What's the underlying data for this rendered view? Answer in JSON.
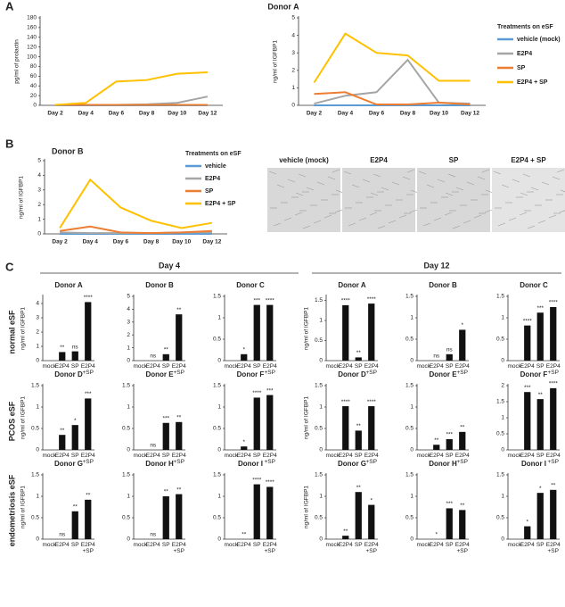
{
  "panel_labels": [
    "A",
    "B",
    "C"
  ],
  "micrographs": [
    "vehicle (mock)",
    "E2P4",
    "SP",
    "E2P4 + SP"
  ],
  "day_headers": [
    "Day 4",
    "Day 12"
  ],
  "row_labels": [
    "normal eSF",
    "PCOS eSF",
    "endometriosis eSF"
  ],
  "chart_data": [
    {
      "type": "line",
      "title": "Donor A",
      "ylabel": "pg/ml of prolactin",
      "categories": [
        "Day 2",
        "Day 4",
        "Day 6",
        "Day 8",
        "Day 10",
        "Day 12"
      ],
      "ylim": [
        0,
        180
      ],
      "yticks": [
        0,
        20,
        40,
        60,
        80,
        100,
        120,
        140,
        160,
        180
      ],
      "series": [
        {
          "name": "vehicle (mock)",
          "color": "#5b9bd5",
          "values": [
            0,
            0,
            0,
            0,
            0,
            0
          ]
        },
        {
          "name": "E2P4",
          "color": "#a5a5a5",
          "values": [
            1,
            1,
            1,
            2,
            5,
            18
          ]
        },
        {
          "name": "SP",
          "color": "#ed7d31",
          "values": [
            1,
            1,
            1,
            1,
            1,
            1
          ]
        },
        {
          "name": "E2P4 + SP",
          "color": "#ffc000",
          "values": [
            1,
            5,
            49,
            52,
            65,
            68
          ]
        }
      ]
    },
    {
      "type": "line",
      "ylabel": "ng/ml of IGFBP1",
      "legend_title": "Treatments on eSF",
      "categories": [
        "Day 2",
        "Day 4",
        "Day 6",
        "Day 8",
        "Day 10",
        "Day 12"
      ],
      "ylim": [
        0,
        5
      ],
      "yticks": [
        0,
        1,
        2,
        3,
        4,
        5
      ],
      "series": [
        {
          "name": "vehicle (mock)",
          "color": "#5b9bd5",
          "values": [
            0,
            0,
            0,
            0,
            0,
            0
          ]
        },
        {
          "name": "E2P4",
          "color": "#a5a5a5",
          "values": [
            0.1,
            0.55,
            0.75,
            2.6,
            0.15,
            0.1
          ]
        },
        {
          "name": "SP",
          "color": "#ed7d31",
          "values": [
            0.65,
            0.75,
            0.05,
            0.05,
            0.15,
            0.05
          ]
        },
        {
          "name": "E2P4 + SP",
          "color": "#ffc000",
          "values": [
            1.3,
            4.1,
            3.0,
            2.85,
            1.4,
            1.4
          ]
        }
      ]
    },
    {
      "type": "line",
      "title": "Donor B",
      "ylabel": "ng/ml of IGFBP1",
      "legend_title": "Treatments on eSF",
      "categories": [
        "Day 2",
        "Day 4",
        "Day 6",
        "Day 8",
        "Day 10",
        "Day 12"
      ],
      "ylim": [
        0,
        5
      ],
      "yticks": [
        0,
        1,
        2,
        3,
        4,
        5
      ],
      "series": [
        {
          "name": "vehicle",
          "color": "#5b9bd5",
          "values": [
            0,
            0,
            0,
            0,
            0,
            0
          ]
        },
        {
          "name": "E2P4",
          "color": "#a5a5a5",
          "values": [
            0.1,
            0.05,
            0.05,
            0.05,
            0.1,
            0.1
          ]
        },
        {
          "name": "SP",
          "color": "#ed7d31",
          "values": [
            0.2,
            0.5,
            0.1,
            0.05,
            0.1,
            0.2
          ]
        },
        {
          "name": "E2P4 + SP",
          "color": "#ffc000",
          "values": [
            0.4,
            3.7,
            1.8,
            0.9,
            0.4,
            0.75
          ]
        }
      ]
    },
    {
      "type": "bar",
      "title": "Donor A",
      "ylabel": "ng/ml of IGFBP1",
      "categories": [
        "mock",
        "E2P4",
        "SP",
        "E2P4 +SP"
      ],
      "values": [
        0,
        0.6,
        0.65,
        4.1
      ],
      "significance": [
        null,
        "**",
        "ns",
        "****"
      ],
      "ylim": [
        0,
        4.5
      ],
      "yticks": [
        0,
        1,
        2,
        3,
        4
      ]
    },
    {
      "type": "bar",
      "title": "Donor B",
      "categories": [
        "mock",
        "E2P4",
        "SP",
        "E2P4 +SP"
      ],
      "values": [
        0,
        0,
        0.5,
        3.6
      ],
      "significance": [
        null,
        "ns",
        "**",
        "**"
      ],
      "ylim": [
        0,
        5
      ],
      "yticks": [
        0,
        1,
        2,
        3,
        4,
        5
      ]
    },
    {
      "type": "bar",
      "title": "Donor C",
      "categories": [
        "mock",
        "E2P4",
        "SP",
        "E2P4 +SP"
      ],
      "values": [
        0,
        0.15,
        1.3,
        1.3
      ],
      "significance": [
        null,
        "*",
        "***",
        "****"
      ],
      "ylim": [
        0,
        1.5
      ],
      "yticks": [
        0,
        0.5,
        1,
        1.5
      ]
    },
    {
      "type": "bar",
      "title": "Donor A",
      "ylabel": "ng/ml of IGFBP1",
      "categories": [
        "mock",
        "E2P4",
        "SP",
        "E2P4 +SP"
      ],
      "values": [
        0,
        1.38,
        0.08,
        1.42
      ],
      "significance": [
        null,
        "****",
        "**",
        "****"
      ],
      "ylim": [
        0,
        1.6
      ],
      "yticks": [
        0,
        0.5,
        1,
        1.5
      ]
    },
    {
      "type": "bar",
      "title": "Donor B",
      "categories": [
        "mock",
        "E2P4",
        "SP",
        "E2P4 +SP"
      ],
      "values": [
        0,
        0,
        0.15,
        0.72
      ],
      "significance": [
        null,
        "ns",
        "ns",
        "*"
      ],
      "ylim": [
        0,
        1.5
      ],
      "yticks": [
        0,
        0.5,
        1,
        1.5
      ]
    },
    {
      "type": "bar",
      "title": "Donor C",
      "categories": [
        "mock",
        "E2P4",
        "SP",
        "E2P4 +SP"
      ],
      "values": [
        0,
        0.82,
        1.12,
        1.25
      ],
      "significance": [
        null,
        "****",
        "***",
        "****"
      ],
      "ylim": [
        0,
        1.5
      ],
      "yticks": [
        0,
        0.5,
        1,
        1.5
      ]
    },
    {
      "type": "bar",
      "title": "Donor D",
      "ylabel": "ng/ml of IGFBP1",
      "categories": [
        "mock",
        "E2P4",
        "SP",
        "E2P4 +SP"
      ],
      "values": [
        0,
        0.35,
        0.58,
        1.2
      ],
      "significance": [
        null,
        "**",
        "*",
        "***"
      ],
      "ylim": [
        0,
        1.5
      ],
      "yticks": [
        0,
        0.5,
        1,
        1.5
      ]
    },
    {
      "type": "bar",
      "title": "Donor E",
      "categories": [
        "mock",
        "E2P4",
        "SP",
        "E2P4 +SP"
      ],
      "values": [
        0,
        0,
        0.63,
        0.65
      ],
      "significance": [
        null,
        "ns",
        "***",
        "**"
      ],
      "ylim": [
        0,
        1.5
      ],
      "yticks": [
        0,
        0.5,
        1,
        1.5
      ]
    },
    {
      "type": "bar",
      "title": "Donor F",
      "categories": [
        "mock",
        "E2P4",
        "SP",
        "E2P4 +SP"
      ],
      "values": [
        0,
        0.08,
        1.22,
        1.28
      ],
      "significance": [
        null,
        "*",
        "****",
        "***"
      ],
      "ylim": [
        0,
        1.5
      ],
      "yticks": [
        0,
        0.5,
        1,
        1.5
      ]
    },
    {
      "type": "bar",
      "title": "Donor D",
      "ylabel": "ng/ml of IGFBP1",
      "categories": [
        "mock",
        "E2P4",
        "SP",
        "E2P4 +SP"
      ],
      "values": [
        0,
        1.02,
        0.45,
        1.02
      ],
      "significance": [
        null,
        "****",
        "**",
        "****"
      ],
      "ylim": [
        0,
        1.5
      ],
      "yticks": [
        0,
        0.5,
        1,
        1.5
      ]
    },
    {
      "type": "bar",
      "title": "Donor E",
      "categories": [
        "mock",
        "E2P4",
        "SP",
        "E2P4 +SP"
      ],
      "values": [
        0,
        0.12,
        0.25,
        0.42
      ],
      "significance": [
        null,
        "**",
        "***",
        "**"
      ],
      "ylim": [
        0,
        1.5
      ],
      "yticks": [
        0,
        0.5,
        1,
        1.5
      ]
    },
    {
      "type": "bar",
      "title": "Donor F",
      "categories": [
        "mock",
        "E2P4",
        "SP",
        "E2P4 +SP"
      ],
      "values": [
        0,
        1.8,
        1.58,
        1.92
      ],
      "significance": [
        null,
        "***",
        "**",
        "****"
      ],
      "ylim": [
        0,
        2
      ],
      "yticks": [
        0,
        0.5,
        1,
        1.5,
        2
      ]
    },
    {
      "type": "bar",
      "title": "Donor G",
      "ylabel": "ng/ml of IGFBP1",
      "categories": [
        "mock",
        "E2P4",
        "SP",
        "E2P4 +SP"
      ],
      "values": [
        0,
        0,
        0.65,
        0.92
      ],
      "significance": [
        null,
        "ns",
        "**",
        "**"
      ],
      "ylim": [
        0,
        1.5
      ],
      "yticks": [
        0,
        0.5,
        1,
        1.5
      ]
    },
    {
      "type": "bar",
      "title": "Donor H",
      "categories": [
        "mock",
        "E2P4",
        "SP",
        "E2P4 +SP"
      ],
      "values": [
        0,
        0,
        1.0,
        1.05
      ],
      "significance": [
        null,
        "ns",
        "**",
        "**"
      ],
      "ylim": [
        0,
        1.5
      ],
      "yticks": [
        0,
        0.5,
        1,
        1.5
      ]
    },
    {
      "type": "bar",
      "title": "Donor I",
      "categories": [
        "mock",
        "E2P4",
        "SP",
        "E2P4 +SP"
      ],
      "values": [
        0,
        0,
        1.28,
        1.22
      ],
      "significance": [
        null,
        "**",
        "****",
        "****"
      ],
      "ylim": [
        0,
        1.5
      ],
      "yticks": [
        0,
        0.5,
        1,
        1.5
      ]
    },
    {
      "type": "bar",
      "title": "Donor G",
      "ylabel": "ng/ml of IGFBP1",
      "categories": [
        "mock",
        "E2P4",
        "SP",
        "E2P4 +SP"
      ],
      "values": [
        0,
        0.08,
        1.1,
        0.8
      ],
      "significance": [
        null,
        "**",
        "**",
        "*"
      ],
      "ylim": [
        0,
        1.5
      ],
      "yticks": [
        0,
        0.5,
        1,
        1.5
      ]
    },
    {
      "type": "bar",
      "title": "Donor H",
      "categories": [
        "mock",
        "E2P4",
        "SP",
        "E2P4 +SP"
      ],
      "values": [
        0,
        0,
        0.72,
        0.68
      ],
      "significance": [
        null,
        "*",
        "***",
        "**"
      ],
      "ylim": [
        0,
        1.5
      ],
      "yticks": [
        0,
        0.5,
        1,
        1.5
      ]
    },
    {
      "type": "bar",
      "title": "Donor I",
      "categories": [
        "mock",
        "E2P4",
        "SP",
        "E2P4 +SP"
      ],
      "values": [
        0,
        0.3,
        1.08,
        1.15
      ],
      "significance": [
        null,
        "*",
        "*",
        "**"
      ],
      "ylim": [
        0,
        1.5
      ],
      "yticks": [
        0,
        0.5,
        1,
        1.5
      ]
    }
  ]
}
